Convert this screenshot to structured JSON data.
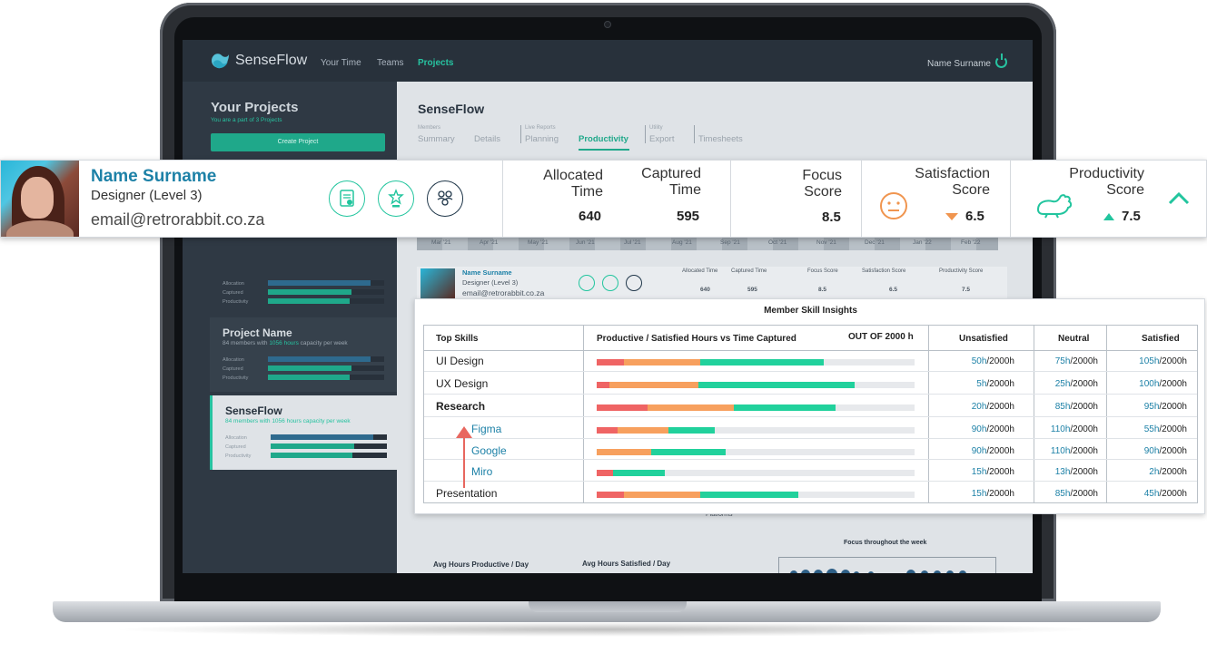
{
  "app": {
    "logo_name": "SenseFlow",
    "nav": [
      "Your Time",
      "Teams",
      "Projects"
    ],
    "active_nav": "Projects",
    "user_name": "Name Surname"
  },
  "sidebar": {
    "title": "Your Projects",
    "subtitle_prefix": "You are a part of",
    "subtitle_count": "3 Projects",
    "create_button": "Create Project",
    "project_cards": [
      {
        "name": "Project Name",
        "members": "84 members with",
        "hours": "1056 hours",
        "suffix": "capacity per week",
        "rows": [
          "Allocation",
          "Captured",
          "Productivity"
        ]
      },
      {
        "name": "SenseFlow",
        "members": "84 members with",
        "hours": "1056 hours",
        "suffix": "capacity per week",
        "rows": [
          "Allocation",
          "Captured",
          "Productivity"
        ]
      }
    ],
    "first_card_rows": [
      "Allocation",
      "Captured",
      "Productivity"
    ]
  },
  "main": {
    "title": "SenseFlow",
    "tab_groups": [
      {
        "group": "Members",
        "tabs": [
          "Summary",
          "Details"
        ]
      },
      {
        "group": "Live Reports",
        "tabs": [
          "Planning",
          "Productivity"
        ]
      },
      {
        "group": "Utility",
        "tabs": [
          "Export"
        ]
      },
      {
        "group": "",
        "tabs": [
          "Timesheets"
        ]
      }
    ],
    "active_tab": "Productivity",
    "months": [
      "Mar '21",
      "Apr '21",
      "May '21",
      "Jun '21",
      "Jul '21",
      "Aug '21",
      "Sep '21",
      "Oct '21",
      "Nov '21",
      "Dec '21",
      "Jan '22",
      "Feb '22"
    ],
    "mini_member": {
      "name": "Name Surname",
      "role": "Designer (Level 3)",
      "email": "email@retrorabbit.co.za",
      "allocated_label": "Allocated Time",
      "allocated": "640",
      "captured_label": "Captured Time",
      "captured": "595",
      "focus_label": "Focus Score",
      "focus": "8.5",
      "satisfaction_label": "Satisfaction Score",
      "satisfaction": "6.5",
      "productivity_label": "Productivity Score",
      "productivity": "7.5"
    },
    "platforms_label": "Platforms",
    "avg_productive": "Avg Hours Productive / Day",
    "avg_satisfied": "Avg Hours Satisfied / Day",
    "focus_week": "Focus throughout the week"
  },
  "profile": {
    "name": "Name Surname",
    "role": "Designer (Level 3)",
    "email": "email@retrorabbit.co.za",
    "badges": [
      "certificate-badge-icon",
      "trophy-badge-icon",
      "team-badge-icon"
    ],
    "allocated_label_1": "Allocated",
    "allocated_label_2": "Time",
    "allocated_value": "640",
    "captured_label_1": "Captured",
    "captured_label_2": "Time",
    "captured_value": "595",
    "focus_label_1": "Focus",
    "focus_label_2": "Score",
    "focus_value": "8.5",
    "satisfaction_label_1": "Satisfaction",
    "satisfaction_label_2": "Score",
    "satisfaction_value": "6.5",
    "productivity_label_1": "Productivity",
    "productivity_label_2": "Score",
    "productivity_value": "7.5"
  },
  "skills_panel": {
    "title": "Member Skill Insights",
    "headers": {
      "skills": "Top Skills",
      "bars": "Productive / Satisfied Hours vs Time Captured",
      "out_of": "OUT OF 2000 h",
      "unsatisfied": "Unsatisfied",
      "neutral": "Neutral",
      "satisfied": "Satisfied"
    },
    "colors": {
      "unsatisfied": "#ef6464",
      "neutral": "#f7a05e",
      "satisfied": "#21d19c",
      "track": "#e7e9ec"
    },
    "rows": [
      {
        "skill": "UI Design",
        "style": "normal",
        "unsatisfied": "50h",
        "neutral": "75h",
        "satisfied": "105h",
        "bar": [
          0.085,
          0.24,
          0.39
        ]
      },
      {
        "skill": "UX Design",
        "style": "normal",
        "unsatisfied": "5h",
        "neutral": "25h",
        "satisfied": "100h",
        "bar": [
          0.04,
          0.28,
          0.49
        ]
      },
      {
        "skill": "Research",
        "style": "bold",
        "unsatisfied": "20h",
        "neutral": "85h",
        "satisfied": "95h",
        "bar": [
          0.16,
          0.27,
          0.32
        ]
      },
      {
        "skill": "Figma",
        "style": "sub",
        "unsatisfied": "90h",
        "neutral": "110h",
        "satisfied": "55h",
        "bar": [
          0.065,
          0.16,
          0.145
        ]
      },
      {
        "skill": "Google",
        "style": "sub",
        "unsatisfied": "90h",
        "neutral": "110h",
        "satisfied": "90h",
        "bar": [
          0.0,
          0.17,
          0.235
        ]
      },
      {
        "skill": "Miro",
        "style": "sub",
        "unsatisfied": "15h",
        "neutral": "13h",
        "satisfied": "2h",
        "bar": [
          0.05,
          0.0,
          0.165
        ]
      },
      {
        "skill": "Presentation",
        "style": "normal",
        "unsatisfied": "15h",
        "neutral": "85h",
        "satisfied": "45h",
        "bar": [
          0.085,
          0.24,
          0.31
        ]
      }
    ],
    "out_of_suffix": "/2000h"
  }
}
